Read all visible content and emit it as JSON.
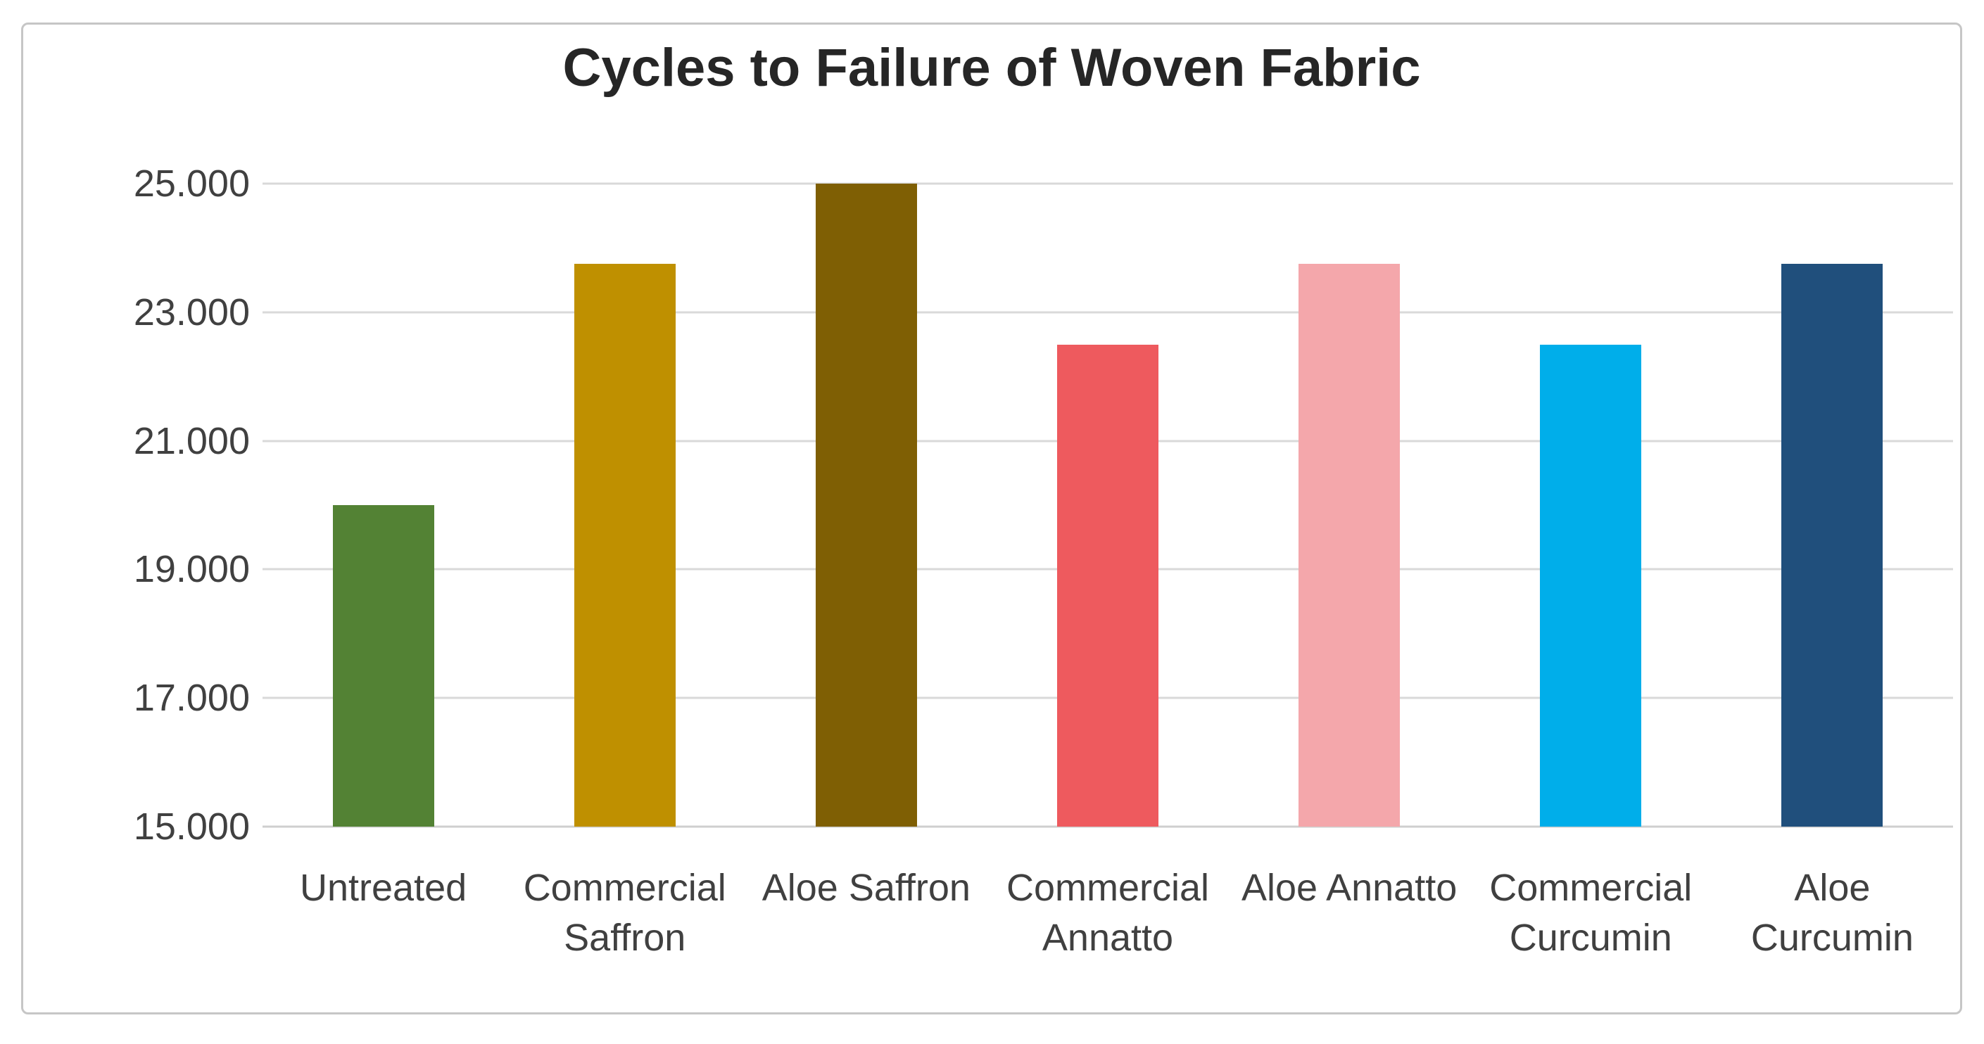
{
  "chart": {
    "title": "Cycles to Failure of Woven Fabric"
  },
  "chart_data": {
    "type": "bar",
    "title": "Cycles to Failure of Woven Fabric",
    "categories": [
      "Untreated",
      "Commercial Saffron",
      "Aloe Saffron",
      "Commercial Annatto",
      "Aloe Annatto",
      "Commercial Curcumin",
      "Aloe Curcumin"
    ],
    "values": [
      20000,
      23750,
      25000,
      22500,
      23750,
      22500,
      23750
    ],
    "bar_colors": [
      "#538234",
      "#BF9000",
      "#7F5F04",
      "#EE5A5E",
      "#F4A7AB",
      "#00AEEA",
      "#204F7C"
    ],
    "xlabel": "",
    "ylabel": "",
    "ylim": [
      15000,
      25000
    ],
    "yticks": [
      {
        "label": "15.000",
        "value": 15000
      },
      {
        "label": "17.000",
        "value": 17000
      },
      {
        "label": "19.000",
        "value": 19000
      },
      {
        "label": "21.000",
        "value": 21000
      },
      {
        "label": "23.000",
        "value": 23000
      },
      {
        "label": "25.000",
        "value": 25000
      }
    ],
    "grid": "horizontal",
    "legend": "none"
  },
  "palette": {
    "background": "#FFFFFF",
    "frame_border": "#C6C6C6",
    "gridline": "#D9D9D9",
    "axis_line": "#CFCFCF",
    "tick_text": "#404040",
    "title_text": "#262626"
  }
}
